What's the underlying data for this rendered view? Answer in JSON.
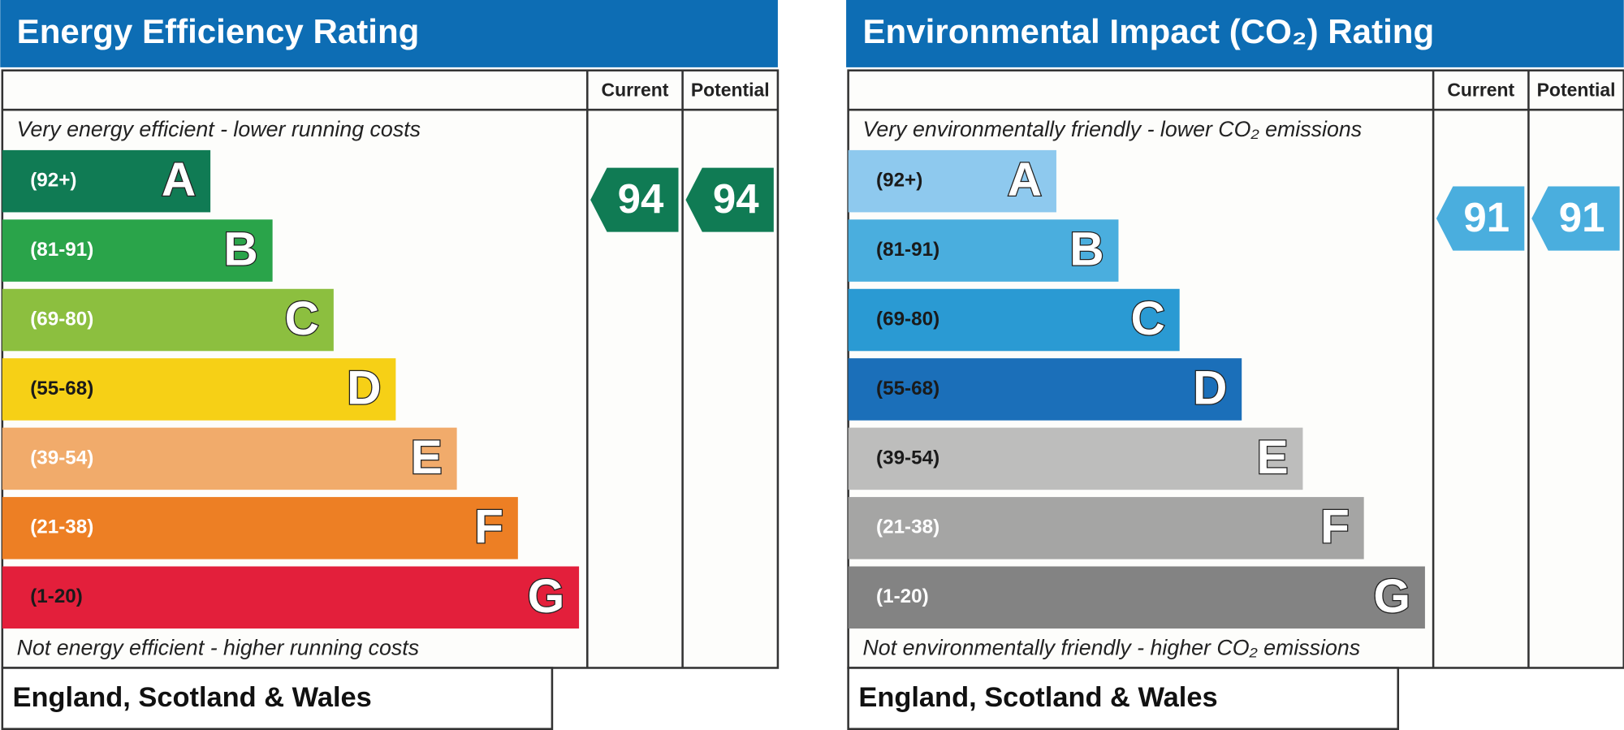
{
  "panels": [
    {
      "title": "Energy Efficiency Rating",
      "current_label": "Current",
      "potential_label": "Potential",
      "top_note": "Very energy efficient - lower running costs",
      "bands": [
        {
          "range": "(92+)",
          "letter": "A",
          "color": "#107b54"
        },
        {
          "range": "(81-91)",
          "letter": "B",
          "color": "#2aa44a"
        },
        {
          "range": "(69-80)",
          "letter": "C",
          "color": "#8cbf3f"
        },
        {
          "range": "(55-68)",
          "letter": "D",
          "color": "#f6d016"
        },
        {
          "range": "(39-54)",
          "letter": "E",
          "color": "#f1ab6b"
        },
        {
          "range": "(21-38)",
          "letter": "F",
          "color": "#ed7f24"
        },
        {
          "range": "(1-20)",
          "letter": "G",
          "color": "#e31f3b"
        }
      ],
      "bottom_note": "Not energy efficient - higher running costs",
      "current": 94,
      "potential": 94,
      "footer": "England, Scotland & Wales"
    },
    {
      "title": "Environmental Impact (CO₂) Rating",
      "current_label": "Current",
      "potential_label": "Potential",
      "top_note": "Very environmentally friendly - lower CO₂ emissions",
      "bands": [
        {
          "range": "(92+)",
          "letter": "A",
          "color": "#8ec9ee"
        },
        {
          "range": "(81-91)",
          "letter": "B",
          "color": "#4aaede"
        },
        {
          "range": "(69-80)",
          "letter": "C",
          "color": "#2a9ad3"
        },
        {
          "range": "(55-68)",
          "letter": "D",
          "color": "#1b6fb9"
        },
        {
          "range": "(39-54)",
          "letter": "E",
          "color": "#bdbdbc"
        },
        {
          "range": "(21-38)",
          "letter": "F",
          "color": "#a5a5a4"
        },
        {
          "range": "(1-20)",
          "letter": "G",
          "color": "#838383"
        }
      ],
      "bottom_note": "Not environmentally friendly - higher CO₂ emissions",
      "current": 91,
      "potential": 91,
      "footer": "England, Scotland & Wales"
    }
  ]
}
